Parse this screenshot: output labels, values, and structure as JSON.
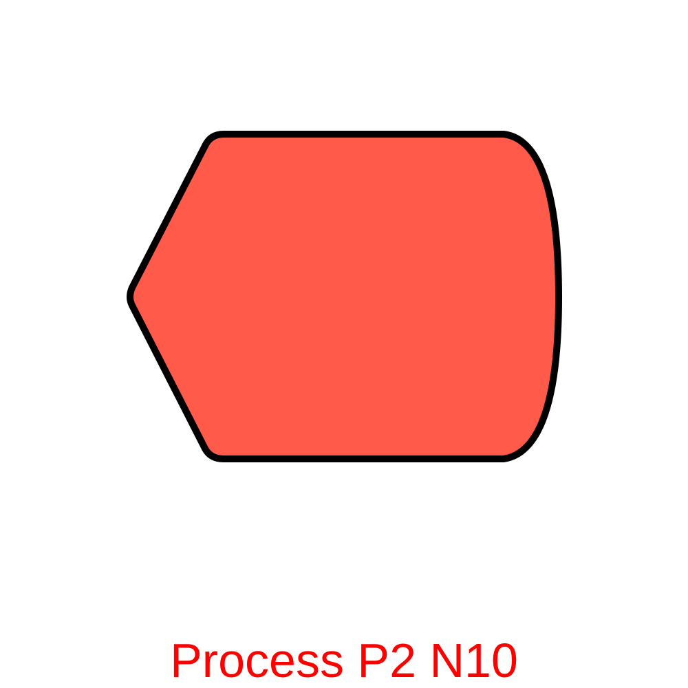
{
  "diagram": {
    "shape": "display",
    "caption": "Process P2 N10",
    "colors": {
      "fill": "#ff5a4a",
      "stroke": "#000000",
      "caption": "#ff0000",
      "background": "#ffffff"
    }
  }
}
